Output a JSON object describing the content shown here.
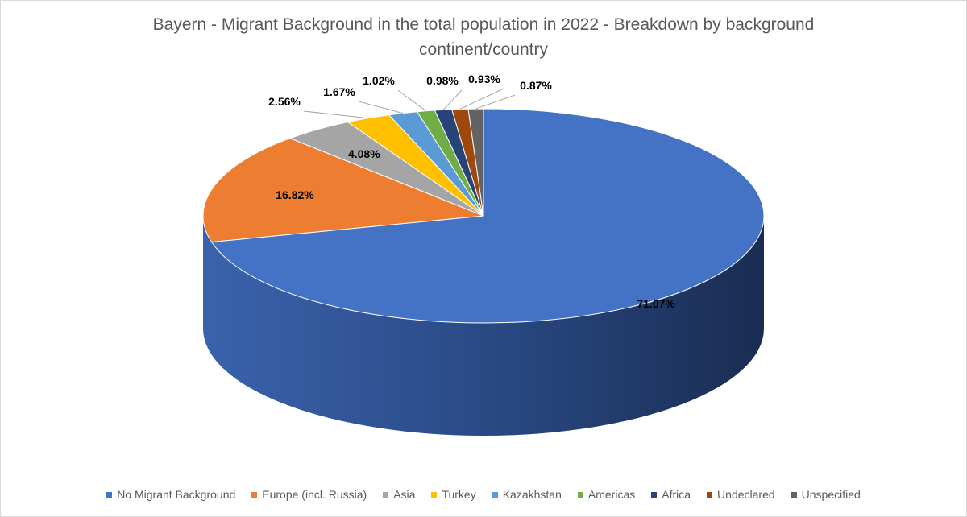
{
  "chart_data": {
    "type": "pie",
    "title": "Bayern - Migrant Background in the total population in 2022 - Breakdown by background continent/country",
    "legend_position": "bottom",
    "slices": [
      {
        "name": "No Migrant Background",
        "value": 71.07,
        "label": "71.07%",
        "color": "#4472C4"
      },
      {
        "name": "Europe (incl. Russia)",
        "value": 16.82,
        "label": "16.82%",
        "color": "#ED7D31"
      },
      {
        "name": "Asia",
        "value": 4.08,
        "label": "4.08%",
        "color": "#A5A5A5"
      },
      {
        "name": "Turkey",
        "value": 2.56,
        "label": "2.56%",
        "color": "#FFC000"
      },
      {
        "name": "Kazakhstan",
        "value": 1.67,
        "label": "1.67%",
        "color": "#5B9BD5"
      },
      {
        "name": "Americas",
        "value": 1.02,
        "label": "1.02%",
        "color": "#70AD47"
      },
      {
        "name": "Africa",
        "value": 0.98,
        "label": "0.98%",
        "color": "#264478"
      },
      {
        "name": "Undeclared",
        "value": 0.93,
        "label": "0.93%",
        "color": "#9E480E"
      },
      {
        "name": "Unspecified",
        "value": 0.87,
        "label": "0.87%",
        "color": "#636363"
      }
    ]
  }
}
